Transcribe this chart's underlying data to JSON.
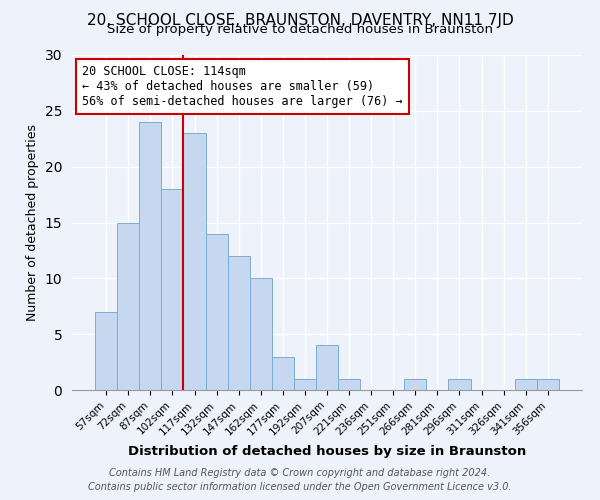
{
  "title": "20, SCHOOL CLOSE, BRAUNSTON, DAVENTRY, NN11 7JD",
  "subtitle": "Size of property relative to detached houses in Braunston",
  "xlabel": "Distribution of detached houses by size in Braunston",
  "ylabel": "Number of detached properties",
  "bar_labels": [
    "57sqm",
    "72sqm",
    "87sqm",
    "102sqm",
    "117sqm",
    "132sqm",
    "147sqm",
    "162sqm",
    "177sqm",
    "192sqm",
    "207sqm",
    "221sqm",
    "236sqm",
    "251sqm",
    "266sqm",
    "281sqm",
    "296sqm",
    "311sqm",
    "326sqm",
    "341sqm",
    "356sqm"
  ],
  "bar_values": [
    7,
    15,
    24,
    18,
    23,
    14,
    12,
    10,
    3,
    1,
    4,
    1,
    0,
    0,
    1,
    0,
    1,
    0,
    0,
    1,
    1
  ],
  "bar_color": "#c5d8f0",
  "bar_edge_color": "#7aadd4",
  "annotation_title": "20 SCHOOL CLOSE: 114sqm",
  "annotation_line1": "← 43% of detached houses are smaller (59)",
  "annotation_line2": "56% of semi-detached houses are larger (76) →",
  "annotation_box_color": "#cc0000",
  "red_line_x": 3.5,
  "ylim": [
    0,
    30
  ],
  "yticks": [
    0,
    5,
    10,
    15,
    20,
    25,
    30
  ],
  "footer1": "Contains HM Land Registry data © Crown copyright and database right 2024.",
  "footer2": "Contains public sector information licensed under the Open Government Licence v3.0.",
  "bg_color": "#eef2fa",
  "grid_color": "#ffffff",
  "title_fontsize": 11,
  "subtitle_fontsize": 9.5,
  "ylabel_fontsize": 9,
  "xlabel_fontsize": 9.5,
  "tick_fontsize": 7.5,
  "footer_fontsize": 7
}
